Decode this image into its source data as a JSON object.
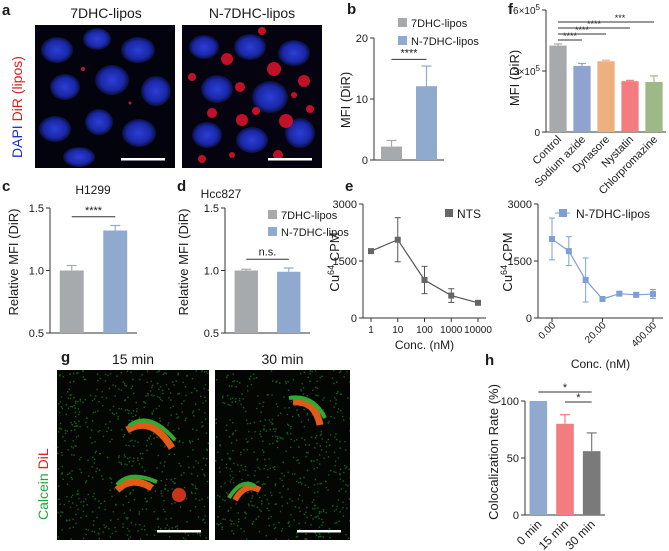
{
  "panels": {
    "a": {
      "letter": "a",
      "captions": [
        "7DHC-lipos",
        "N-7DHC-lipos"
      ],
      "ylabel_dapi": "DAPI",
      "ylabel_dir": "DiR (lipos)"
    },
    "g": {
      "letter": "g",
      "captions": [
        "15 min",
        "30 min"
      ],
      "ylabel_calcein": "Calcein",
      "ylabel_dil": "DiL"
    },
    "c": {
      "letter": "c"
    },
    "d": {
      "letter": "d"
    },
    "e": {
      "letter": "e"
    },
    "f": {
      "letter": "f"
    },
    "b": {
      "letter": "b"
    },
    "h": {
      "letter": "h"
    }
  },
  "colors": {
    "grey": "#a7aaad",
    "blue": "#8fa9cf",
    "bars_f": [
      "#a7aaad",
      "#8fa3cf",
      "#eeb07e",
      "#f27c80",
      "#9eb986"
    ],
    "bars_h": [
      "#8fa9cf",
      "#f27c80",
      "#7a7a7a"
    ]
  },
  "chart_data": [
    {
      "id": "b",
      "type": "bar",
      "ylabel": "MFI (DiR)",
      "ylim": [
        0,
        20
      ],
      "yticks": [
        "0",
        "10",
        "20"
      ],
      "legend": [
        "7DHC-lipos",
        "N-7DHC-lipos"
      ],
      "values": [
        2.2,
        12.1
      ],
      "errors": [
        1.0,
        3.3
      ],
      "significance": "****"
    },
    {
      "id": "c",
      "type": "bar",
      "title": "H1299",
      "ylabel": "Relative MFI (DiR)",
      "ylim": [
        0.5,
        1.5
      ],
      "yticks": [
        "0.5",
        "1.0",
        "1.5"
      ],
      "values": [
        1.0,
        1.32
      ],
      "errors": [
        0.04,
        0.04
      ],
      "significance": "****"
    },
    {
      "id": "d",
      "type": "bar",
      "title": "Hcc827",
      "ylabel": "Relative MFI (DiR)",
      "ylim": [
        0.5,
        1.5
      ],
      "yticks": [
        "0.5",
        "1.0",
        "1.5"
      ],
      "legend": [
        "7DHC-lipos",
        "N-7DHC-lipos"
      ],
      "values": [
        1.0,
        0.99
      ],
      "errors": [
        0.01,
        0.03
      ],
      "significance": "n.s."
    },
    {
      "id": "e1",
      "type": "line",
      "legend": "NTS",
      "ylabel_main": "Cu",
      "ylabel_sup": "64",
      "ylabel_rest": " CPM",
      "xlabel": "Conc. (nM)",
      "ylim": [
        0,
        3000
      ],
      "yticks": [
        "0",
        "1500",
        "3000"
      ],
      "xticks": [
        "1",
        "10",
        "100",
        "1000",
        "10000"
      ],
      "x": [
        1,
        3,
        10,
        30,
        100,
        300,
        1000,
        3000,
        10000
      ],
      "y": [
        1760,
        null,
        2060,
        null,
        1000,
        null,
        590,
        null,
        400
      ],
      "errors": [
        0,
        0,
        580,
        0,
        360,
        0,
        180,
        0,
        30
      ]
    },
    {
      "id": "e2",
      "type": "line",
      "legend": "N-7DHC-lipos",
      "ylabel_main": "Cu",
      "ylabel_sup": "64",
      "ylabel_rest": " CPM",
      "xlabel": "Conc. (nM)",
      "ylim": [
        0,
        3000
      ],
      "yticks": [
        "0",
        "1500",
        "3000"
      ],
      "xticks": [
        "0.00",
        "20.00",
        "400.00"
      ],
      "points": [
        [
          0,
          2080,
          550
        ],
        [
          1,
          1760,
          380
        ],
        [
          2,
          1000,
          580
        ],
        [
          3,
          500,
          60
        ],
        [
          4,
          640,
          60
        ],
        [
          5,
          610,
          60
        ],
        [
          6,
          630,
          120
        ]
      ]
    },
    {
      "id": "f",
      "type": "bar",
      "ylabel": "MFI (DiR)",
      "ylim": [
        0,
        6
      ],
      "ytick_mant": [
        "0",
        "3",
        "6"
      ],
      "ytick_exp": "5",
      "categories": [
        "Control",
        "Sodium azide",
        "Dynasore",
        "Nystatin",
        "Chlorpromazine"
      ],
      "values": [
        4.25,
        3.25,
        3.48,
        2.5,
        2.46
      ],
      "errors": [
        0.08,
        0.12,
        0.05,
        0.04,
        0.3
      ],
      "significance": [
        "****",
        "****",
        "****",
        "***"
      ]
    },
    {
      "id": "h",
      "type": "bar",
      "ylabel": "Colocalization Rate (%)",
      "ylim": [
        0,
        100
      ],
      "yticks": [
        "0",
        "50",
        "100"
      ],
      "categories": [
        "0 min",
        "15 min",
        "30 min"
      ],
      "values": [
        100,
        80,
        56
      ],
      "errors": [
        0,
        8,
        16
      ],
      "significance": [
        "*",
        "*"
      ]
    }
  ]
}
